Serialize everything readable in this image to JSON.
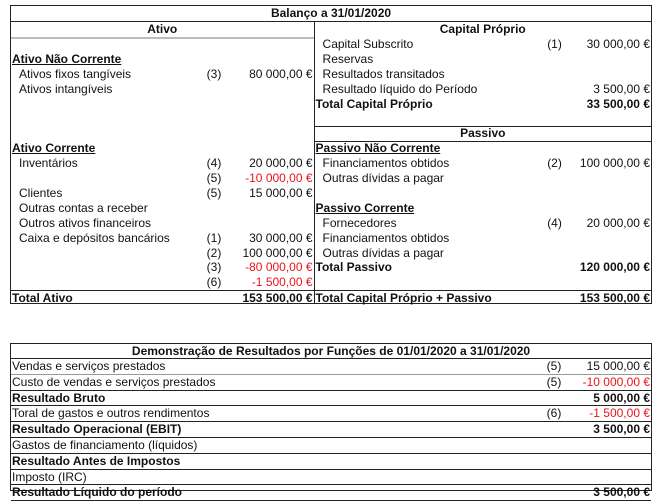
{
  "balanco": {
    "title": "Balanço a 31/01/2020",
    "ativo": {
      "header": "Ativo",
      "rows": [
        {
          "r": 2,
          "label": "Ativo Não Corrente",
          "style": "section"
        },
        {
          "r": 3,
          "label": "Ativos fixos tangíveis",
          "ref": "(3)",
          "value": "80 000,00 €"
        },
        {
          "r": 4,
          "label": "Ativos intangíveis"
        },
        {
          "r": 8,
          "label": "Ativo Corrente",
          "style": "section"
        },
        {
          "r": 9,
          "label": "Inventários",
          "ref": "(4)",
          "value": "20 000,00 €"
        },
        {
          "r": 10,
          "ref": "(5)",
          "value": "-10 000,00 €",
          "negative": true
        },
        {
          "r": 11,
          "label": "Clientes",
          "ref": "(5)",
          "value": "15 000,00 €"
        },
        {
          "r": 12,
          "label": "Outras contas a receber"
        },
        {
          "r": 13,
          "label": "Outros ativos financeiros"
        },
        {
          "r": 14,
          "label": "Caixa e depósitos bancários",
          "ref": "(1)",
          "value": "30 000,00 €"
        },
        {
          "r": 15,
          "ref": "(2)",
          "value": "100 000,00 €"
        },
        {
          "r": 16,
          "ref": "(3)",
          "value": "-80 000,00 €",
          "negative": true
        },
        {
          "r": 17,
          "ref": "(6)",
          "value": "-1 500,00 €",
          "negative": true
        },
        {
          "r": 18,
          "label": "Total Ativo",
          "value": "153 500,00 €",
          "style": "total"
        }
      ]
    },
    "capital_passivo": {
      "header_capital": "Capital Próprio",
      "header_passivo": "Passivo",
      "rows": [
        {
          "r": 1,
          "label": "Capital Subscrito",
          "ref": "(1)",
          "value": "30 000,00 €"
        },
        {
          "r": 2,
          "label": "Reservas"
        },
        {
          "r": 3,
          "label": "Resultados transitados"
        },
        {
          "r": 4,
          "label": "Resultado líquido do Período",
          "value": "3 500,00 €"
        },
        {
          "r": 5,
          "label": "Total Capital Próprio",
          "value": "33 500,00 €",
          "style": "total"
        },
        {
          "r": 8,
          "label": "Passivo Não Corrente",
          "style": "section"
        },
        {
          "r": 9,
          "label": "Financiamentos obtidos",
          "ref": "(2)",
          "value": "100 000,00 €"
        },
        {
          "r": 10,
          "label": "Outras dívidas a pagar"
        },
        {
          "r": 12,
          "label": "Passivo Corrente",
          "style": "section"
        },
        {
          "r": 13,
          "label": "Fornecedores",
          "ref": "(4)",
          "value": "20 000,00 €"
        },
        {
          "r": 14,
          "label": "Financiamentos obtidos"
        },
        {
          "r": 15,
          "label": "Outras dívidas a pagar"
        },
        {
          "r": 16,
          "label": "Total Passivo",
          "value": "120 000,00 €",
          "style": "total"
        },
        {
          "r": 18,
          "label": "Total Capital Próprio + Passivo",
          "value": "153 500,00 €",
          "style": "total"
        }
      ]
    }
  },
  "demonstracao": {
    "title": "Demonstração de Resultados  por Funções de  01/01/2020 a 31/01/2020",
    "rows": [
      {
        "label": "Vendas e serviços prestados",
        "ref": "(5)",
        "value": "15 000,00 €"
      },
      {
        "label": "Custo de vendas e serviços prestados",
        "ref": "(5)",
        "value": "-10 000,00 €",
        "negative": true
      },
      {
        "label": "Resultado Bruto",
        "value": "5 000,00 €",
        "style": "total"
      },
      {
        "label": "Toral de gastos e outros rendimentos",
        "ref": "(6)",
        "value": "-1 500,00 €",
        "negative": true
      },
      {
        "label": "Resultado Operacional (EBIT)",
        "value": "3 500,00 €",
        "style": "total"
      },
      {
        "label": "Gastos de financiamento (líquidos)"
      },
      {
        "label": "Resultado Antes de Impostos",
        "style": "total"
      },
      {
        "label": "Imposto (IRC)"
      },
      {
        "label": "Resultado Líquido do período",
        "value": "3 500,00 €",
        "style": "total"
      }
    ]
  },
  "colors": {
    "negative": "#e8141c",
    "border": "#222222"
  }
}
